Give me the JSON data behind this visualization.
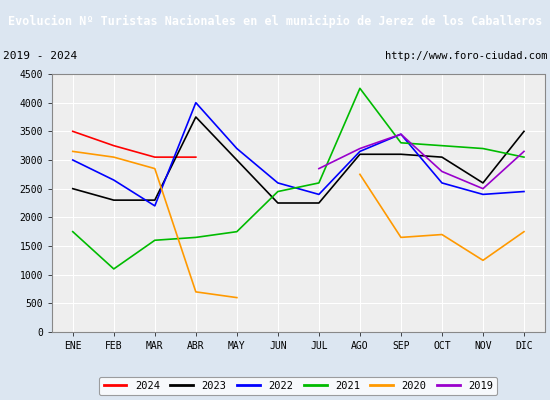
{
  "title": "Evolucion Nº Turistas Nacionales en el municipio de Jerez de los Caballeros",
  "subtitle_left": "2019 - 2024",
  "subtitle_right": "http://www.foro-ciudad.com",
  "months": [
    "ENE",
    "FEB",
    "MAR",
    "ABR",
    "MAY",
    "JUN",
    "JUL",
    "AGO",
    "SEP",
    "OCT",
    "NOV",
    "DIC"
  ],
  "series": {
    "2024": {
      "color": "#ff0000",
      "data": [
        3500,
        3250,
        3050,
        3050,
        null,
        null,
        null,
        null,
        null,
        null,
        null,
        null
      ]
    },
    "2023": {
      "color": "#000000",
      "data": [
        2500,
        2300,
        2300,
        3750,
        3000,
        2250,
        2250,
        3100,
        3100,
        3050,
        2600,
        3500
      ]
    },
    "2022": {
      "color": "#0000ff",
      "data": [
        3000,
        2650,
        2200,
        4000,
        3200,
        2600,
        2400,
        3150,
        3450,
        2600,
        2400,
        2450
      ]
    },
    "2021": {
      "color": "#00bb00",
      "data": [
        1750,
        1100,
        1600,
        1650,
        1750,
        2450,
        2600,
        4250,
        3300,
        3250,
        3200,
        3050
      ]
    },
    "2020": {
      "color": "#ff9900",
      "data": [
        3150,
        3050,
        2850,
        700,
        600,
        null,
        null,
        2750,
        1650,
        1700,
        1250,
        1750
      ]
    },
    "2019": {
      "color": "#9900cc",
      "data": [
        null,
        null,
        null,
        null,
        null,
        null,
        2850,
        3200,
        3450,
        2800,
        2500,
        3150
      ]
    }
  },
  "ylim": [
    0,
    4500
  ],
  "yticks": [
    0,
    500,
    1000,
    1500,
    2000,
    2500,
    3000,
    3500,
    4000,
    4500
  ],
  "title_bg_color": "#4472c4",
  "title_color": "#ffffff",
  "plot_bg_color": "#eeeeee",
  "outer_bg_color": "#dce6f1",
  "grid_color": "#ffffff",
  "subtitle_bg_color": "#f0f0f0"
}
